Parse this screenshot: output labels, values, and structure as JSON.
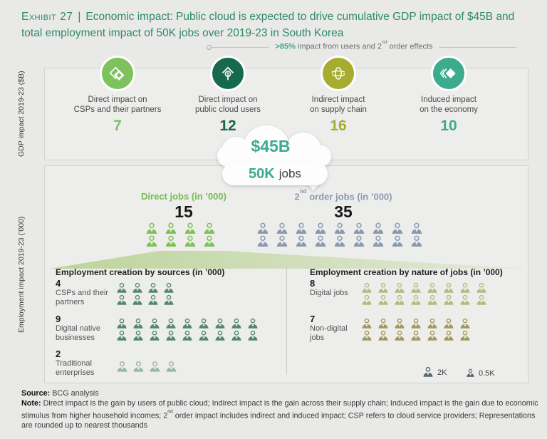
{
  "title": {
    "label": "Exhibit 27",
    "separator": "|",
    "text": "Economic impact: Public cloud is expected to drive cumulative GDP impact of $45B and total employment impact of 50K jobs over 2019-23 in South Korea",
    "color": "#2d8a6a"
  },
  "annotation": {
    "highlight": ">85%",
    "highlight_color": "#3da88a",
    "text_pre": " impact from users and 2",
    "sup": "nd",
    "text_post": " order effects"
  },
  "gdp_panel": {
    "axis_label": "GDP impact 2019-23 ($B)",
    "items": [
      {
        "icon": "stacked-cards-icon",
        "label_line1": "Direct impact on",
        "label_line2": "CSPs and their partners",
        "value": "7",
        "color": "#7dc25c"
      },
      {
        "icon": "dollar-upload-icon",
        "label_line1": "Direct impact on",
        "label_line2": "public cloud users",
        "value": "12",
        "color": "#17694e"
      },
      {
        "icon": "supply-chain-orbit-icon",
        "label_line1": "Indirect impact",
        "label_line2": "on supply chain",
        "value": "16",
        "color": "#a6ad2e"
      },
      {
        "icon": "layered-diamonds-icon",
        "label_line1": "Induced impact",
        "label_line2": "on the economy",
        "value": "10",
        "color": "#3cab8e"
      }
    ]
  },
  "cloud": {
    "gdp_total": "$45B",
    "total_color": "#3cab8e",
    "jobs_total": "50K",
    "jobs_suffix": "jobs"
  },
  "employment_panel": {
    "axis_label": "Employment impact 2019-23 (’000)",
    "direct": {
      "header": "Direct jobs (in ’000)",
      "header_color": "#72bf4e",
      "value": "15",
      "icons": {
        "count": 8,
        "per_row": 4,
        "color": "#7dc157"
      }
    },
    "second_order": {
      "header_pre": "2",
      "header_sup": "nd",
      "header_post": " order jobs (in ’000)",
      "header_color": "#8b98ae",
      "value": "35",
      "icons": {
        "count": 18,
        "per_row": 9,
        "color": "#8b99b0"
      }
    },
    "sources": {
      "header": "Employment creation by sources (in ’000)",
      "rows": [
        {
          "value": "4",
          "label": "CSPs and their partners",
          "icons": {
            "count": 8,
            "per_row": 4,
            "color": "#55876d"
          }
        },
        {
          "value": "9",
          "label": "Digital native businesses",
          "icons": {
            "count": 18,
            "per_row": 9,
            "color": "#55876d"
          }
        },
        {
          "value": "2",
          "label": "Traditional enterprises",
          "icons": {
            "count": 4,
            "per_row": 4,
            "color": "#96b9a3"
          }
        }
      ]
    },
    "nature": {
      "header": "Employment creation by nature of jobs (in ’000)",
      "rows": [
        {
          "value": "8",
          "label": "Digital jobs",
          "icons": {
            "count": 16,
            "per_row": 8,
            "color": "#b6ba7f"
          }
        },
        {
          "value": "7",
          "label": "Non-digital jobs",
          "icons": {
            "count": 14,
            "per_row": 7,
            "color": "#9f9a5c"
          }
        }
      ]
    },
    "legend": [
      {
        "label": "2K",
        "icons": {
          "count": 1,
          "per_row": 1,
          "color": "#5b6670"
        }
      },
      {
        "label": "0.5K",
        "icons": {
          "count": 1,
          "per_row": 1,
          "color": "#5b6670"
        }
      }
    ]
  },
  "footer": {
    "source_label": "Source:",
    "source_text": " BCG analysis",
    "note_label": "Note:",
    "note_part1": " Direct impact is the gain by users of public cloud; Indirect impact is the gain across their supply chain; Induced impact is the gain due to economic stimulus from higher household incomes; 2",
    "note_sup": "nd",
    "note_part2": " order impact includes indirect and induced impact; CSP refers to cloud service providers; Representations are rounded up to nearest thousands"
  },
  "chart_data": [
    {
      "type": "bar",
      "title": "GDP impact 2019-23 ($B)",
      "total": "$45B",
      "categories": [
        "Direct impact on CSPs and their partners",
        "Direct impact on public cloud users",
        "Indirect impact on supply chain",
        "Induced impact on the economy"
      ],
      "values": [
        7,
        12,
        16,
        10
      ]
    },
    {
      "type": "bar",
      "title": "Employment impact 2019-23 ('000)",
      "total": "50K jobs",
      "unit_per_icon": "2K",
      "categories": [
        "Direct jobs",
        "2nd order jobs"
      ],
      "values": [
        15,
        35
      ]
    },
    {
      "type": "bar",
      "title": "Employment creation by sources (in '000)",
      "unit_per_icon": "0.5K",
      "categories": [
        "CSPs and their partners",
        "Digital native businesses",
        "Traditional enterprises"
      ],
      "values": [
        4,
        9,
        2
      ]
    },
    {
      "type": "bar",
      "title": "Employment creation by nature of jobs (in '000)",
      "unit_per_icon": "0.5K",
      "categories": [
        "Digital jobs",
        "Non-digital jobs"
      ],
      "values": [
        8,
        7
      ]
    }
  ]
}
